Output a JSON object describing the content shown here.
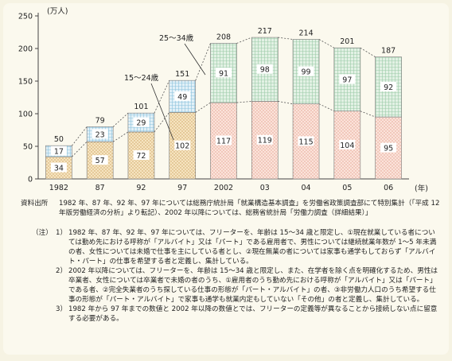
{
  "chart_data": {
    "type": "bar",
    "stacked": true,
    "categories": [
      "1982",
      "87",
      "92",
      "97",
      "2002",
      "03",
      "04",
      "05",
      "06"
    ],
    "x_unit": "(年)",
    "y_unit": "(万人)",
    "ylim": [
      0,
      250
    ],
    "yticks": [
      0,
      50,
      100,
      150,
      200,
      250
    ],
    "grid": false,
    "series": [
      {
        "name": "15～24歳",
        "values": [
          34,
          57,
          72,
          102,
          117,
          119,
          115,
          104,
          95
        ]
      },
      {
        "name": "25～34歳",
        "values": [
          17,
          23,
          29,
          49,
          91,
          98,
          99,
          97,
          92
        ]
      }
    ],
    "totals": [
      50,
      79,
      101,
      151,
      208,
      217,
      214,
      201,
      187
    ],
    "annotations": {
      "upper": "25～34歳",
      "lower": "15～24歳"
    },
    "colors": {
      "lower_fill": "#f7d9cf",
      "upper_fill": "#d6ecdc",
      "lower_fill_early": "#f0dcb2",
      "upper_fill_early": "#cfe6f2"
    }
  },
  "source": {
    "label": "資料出所",
    "text": "1982 年、87 年、92 年、97 年については総務庁統計局「就業構造基本調査」を労働省政策調査部にて特別集計（「平成 12 年版労働経済の分析」より転記）、2002 年以降については、総務省統計局「労働力調査（詳細結果）」"
  },
  "notes": {
    "label": "（注）",
    "items": [
      {
        "num": "1）",
        "text": "1982 年、87 年、92 年、97 年については、フリーターを、年齢は 15～34 歳と限定し、①現在就業している者については勤め先における呼称が「アルバイト」又は「パート」である雇用者で、男性については継続就業年数が 1～5 年未満の者、女性については未婚で仕事を主にしている者とし、②現在無業の者については家事も通学もしておらず「アルバイト・パート」の仕事を希望する者と定義し、集計している。"
      },
      {
        "num": "2）",
        "text": "2002 年以降については、フリーターを、年齢は 15～34 歳と限定し、また、在学者を除く点を明確化するため、男性は卒業者、女性については卒業者で未婚の者のうち、①雇用者のうち勤め先における呼称が「アルバイト」又は「パート」である者、②完全失業者のうち探している仕事の形態が「パート・アルバイト」の者、③非労働力人口のうち希望する仕事の形態が「パート・アルバイト」で家事も通学も就業内定もしていない「その他」の者と定義し、集計している。"
      },
      {
        "num": "3）",
        "text": "1982 年から 97 年までの数値と 2002 年以降の数値とでは、フリーターの定義等が異なることから接続しない点に留意する必要がある。"
      }
    ]
  }
}
